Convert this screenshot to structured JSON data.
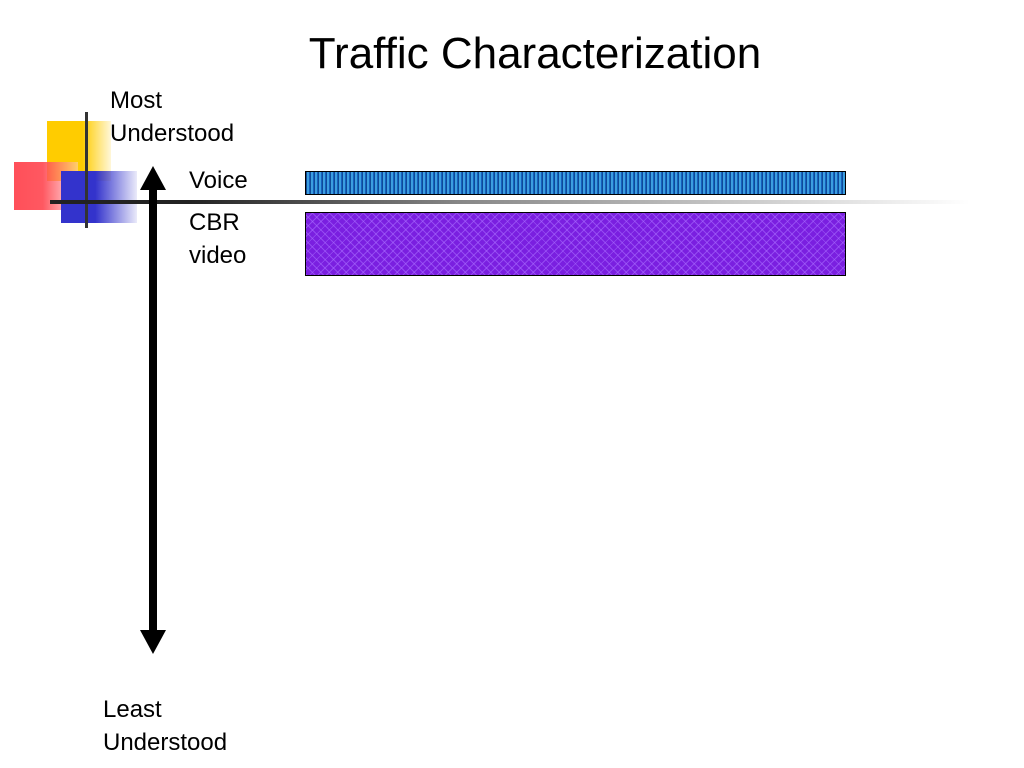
{
  "title": "Traffic Characterization",
  "scale": {
    "top_label": [
      "Most",
      "Understood"
    ],
    "bottom_label": [
      "Least",
      "Understood"
    ]
  },
  "categories": [
    {
      "label": [
        "Voice"
      ],
      "pattern": "vertical-stripes",
      "color": "#1560bd"
    },
    {
      "label": [
        "CBR",
        "video"
      ],
      "pattern": "crosshatch",
      "color": "#7a1fe0"
    }
  ],
  "decoration_colors": [
    "#ffcc00",
    "#ff4650",
    "#3333cc"
  ]
}
